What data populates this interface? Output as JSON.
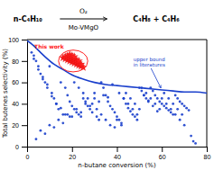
{
  "chart_data": {
    "type": "scatter",
    "annotations": [
      "n-C₄H₁₀",
      "O₂",
      "Mo-VMgO",
      "C₄H₈ + C₄H₆",
      "This work",
      "upper bound\nin literatures"
    ],
    "x_label": "n-butane conversion (%)",
    "y_label": "Total butenes selectivity (%)",
    "xlim": [
      0,
      80
    ],
    "ylim": [
      0,
      100
    ],
    "xticks": [
      0,
      20,
      40,
      60,
      80
    ],
    "yticks": [
      0,
      20,
      40,
      60,
      80,
      100
    ],
    "grid": false,
    "series": [
      {
        "type": "scatter",
        "marker": "circle",
        "color": "#1a3fcc",
        "x": [
          2,
          3,
          4,
          5,
          6,
          7,
          8,
          9,
          10,
          11,
          12,
          13,
          14,
          15,
          16,
          17,
          18,
          19,
          20,
          21,
          22,
          23,
          24,
          25,
          26,
          27,
          28,
          29,
          30,
          31,
          32,
          33,
          34,
          35,
          36,
          37,
          38,
          39,
          40,
          41,
          42,
          43,
          44,
          45,
          46,
          47,
          48,
          49,
          50,
          51,
          52,
          53,
          54,
          55,
          56,
          57,
          58,
          59,
          60,
          61,
          62,
          63,
          64,
          65,
          66,
          67,
          68,
          69,
          70,
          71,
          72,
          73,
          74,
          75,
          3,
          5,
          7,
          9,
          11,
          13,
          15,
          17,
          19,
          21,
          23,
          25,
          27,
          29,
          31,
          33,
          35,
          37,
          39,
          41,
          43,
          45,
          47,
          49,
          51,
          53,
          55,
          57,
          59,
          61,
          63,
          65,
          67,
          69,
          4,
          6,
          8,
          10,
          12,
          14,
          16,
          18,
          20,
          22,
          24,
          26,
          28,
          30,
          32,
          34,
          36,
          38,
          40,
          42,
          44,
          46,
          48,
          50,
          52,
          54,
          56,
          58,
          60,
          62,
          64,
          66,
          68,
          70
        ],
        "values": [
          88,
          85,
          80,
          75,
          68,
          65,
          60,
          55,
          75,
          50,
          45,
          40,
          35,
          60,
          30,
          55,
          48,
          42,
          38,
          35,
          32,
          30,
          28,
          45,
          42,
          38,
          35,
          32,
          50,
          28,
          25,
          60,
          55,
          48,
          42,
          38,
          35,
          32,
          28,
          25,
          22,
          45,
          40,
          36,
          33,
          30,
          28,
          25,
          55,
          52,
          48,
          45,
          42,
          55,
          52,
          48,
          45,
          42,
          40,
          38,
          36,
          34,
          32,
          30,
          48,
          45,
          42,
          40,
          38,
          36,
          34,
          10,
          5,
          3,
          82,
          72,
          63,
          58,
          47,
          40,
          36,
          30,
          28,
          60,
          55,
          50,
          45,
          40,
          35,
          30,
          25,
          20,
          18,
          50,
          45,
          40,
          35,
          30,
          55,
          50,
          45,
          40,
          35,
          50,
          45,
          40,
          35,
          30,
          7,
          15,
          12,
          20,
          18,
          25,
          22,
          30,
          28,
          35,
          32,
          40,
          38,
          45,
          42,
          48,
          46,
          58,
          25,
          20,
          50,
          45,
          40,
          35,
          48,
          43,
          38,
          33,
          45,
          40,
          35,
          30,
          25,
          20
        ]
      },
      {
        "type": "scatter",
        "marker": "star",
        "color": "#ff2020",
        "x": [
          16,
          17,
          18,
          19,
          20,
          21,
          22,
          23,
          24,
          25,
          17,
          18,
          19,
          20,
          21,
          22,
          23,
          24,
          18,
          19,
          20,
          21,
          22,
          23,
          19,
          20,
          21
        ],
        "values": [
          83,
          82,
          81,
          80,
          79,
          78,
          77,
          76,
          75,
          74,
          84,
          83,
          82,
          81,
          80,
          79,
          78,
          77,
          85,
          84,
          83,
          82,
          81,
          80,
          86,
          85,
          84
        ]
      },
      {
        "type": "line",
        "line_style": "solid",
        "color": "#1a3fcc",
        "x": [
          0,
          2,
          5,
          8,
          12,
          16,
          20,
          25,
          30,
          35,
          40,
          45,
          50,
          55,
          60,
          65,
          70,
          75,
          80
        ],
        "values": [
          99,
          96,
          90,
          84,
          77,
          72,
          67,
          63,
          60,
          58,
          57,
          56,
          55,
          54,
          53,
          52,
          51,
          51,
          50
        ]
      }
    ]
  }
}
